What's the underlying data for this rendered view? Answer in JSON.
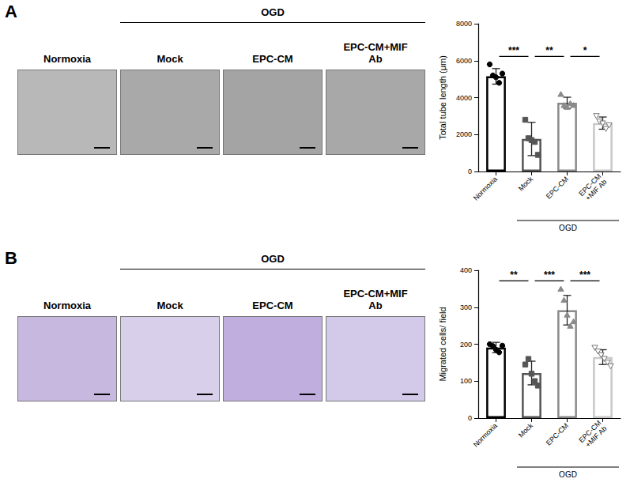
{
  "figure": {
    "panels": [
      {
        "letter": "A",
        "group_label": "OGD",
        "image_labels": [
          "Normoxia",
          "Mock",
          "EPC-CM",
          "EPC-CM+MIF\nAb"
        ]
      },
      {
        "letter": "B",
        "group_label": "OGD",
        "image_labels": [
          "Normoxia",
          "Mock",
          "EPC-CM",
          "EPC-CM+MIF\nAb"
        ]
      }
    ]
  },
  "chart_data": [
    {
      "type": "bar",
      "y_label": "Total tube length (μm)",
      "categories": [
        "Normoxia",
        "Mock",
        "EPC-CM",
        "EPC-CM\n+MIF Ab"
      ],
      "values": [
        5150,
        1760,
        3720,
        2620
      ],
      "errors": [
        420,
        900,
        300,
        330
      ],
      "colors": [
        "#000000",
        "#555555",
        "#8a8a8a",
        "#c8c8c8"
      ],
      "points": [
        {
          "marker": "circle",
          "values": [
            5800,
            5200,
            5100,
            4800,
            5300
          ]
        },
        {
          "marker": "square",
          "values": [
            2800,
            1800,
            1700,
            1600,
            900
          ]
        },
        {
          "marker": "triangle",
          "values": [
            4200,
            3600,
            3500,
            3700,
            3600
          ]
        },
        {
          "marker": "open-triangle-down",
          "values": [
            3000,
            2700,
            2600,
            2300,
            2500
          ]
        }
      ],
      "ylim": [
        0,
        8000
      ],
      "yticks": [
        0,
        2000,
        4000,
        6000,
        8000
      ],
      "grid": false,
      "group": {
        "label": "OGD",
        "from": "Mock",
        "to": "EPC-CM\n+MIF Ab"
      },
      "significance": [
        {
          "between": [
            "Normoxia",
            "Mock"
          ],
          "label": "***"
        },
        {
          "between": [
            "Mock",
            "EPC-CM"
          ],
          "label": "**"
        },
        {
          "between": [
            "EPC-CM",
            "EPC-CM\n+MIF Ab"
          ],
          "label": "*"
        }
      ]
    },
    {
      "type": "bar",
      "y_label": "Migrated cells/ field",
      "categories": [
        "Normoxia",
        "Mock",
        "EPC-CM",
        "EPC-CM\n+MIF Ab"
      ],
      "values": [
        191,
        122,
        292,
        165
      ],
      "errors": [
        14,
        32,
        40,
        20
      ],
      "colors": [
        "#000000",
        "#555555",
        "#8a8a8a",
        "#c8c8c8"
      ],
      "points": [
        {
          "marker": "circle",
          "values": [
            200,
            195,
            185,
            178,
            196
          ]
        },
        {
          "marker": "square",
          "values": [
            145,
            160,
            120,
            100,
            88
          ]
        },
        {
          "marker": "triangle",
          "values": [
            350,
            320,
            280,
            250,
            262
          ]
        },
        {
          "marker": "open-triangle-down",
          "values": [
            190,
            180,
            170,
            160,
            150,
            140
          ]
        }
      ],
      "ylim": [
        0,
        400
      ],
      "yticks": [
        0,
        100,
        200,
        300,
        400
      ],
      "grid": false,
      "group": {
        "label": "OGD",
        "from": "Mock",
        "to": "EPC-CM\n+MIF Ab"
      },
      "significance": [
        {
          "between": [
            "Normoxia",
            "Mock"
          ],
          "label": "**"
        },
        {
          "between": [
            "Mock",
            "EPC-CM"
          ],
          "label": "***"
        },
        {
          "between": [
            "EPC-CM",
            "EPC-CM\n+MIF Ab"
          ],
          "label": "***"
        }
      ]
    }
  ]
}
